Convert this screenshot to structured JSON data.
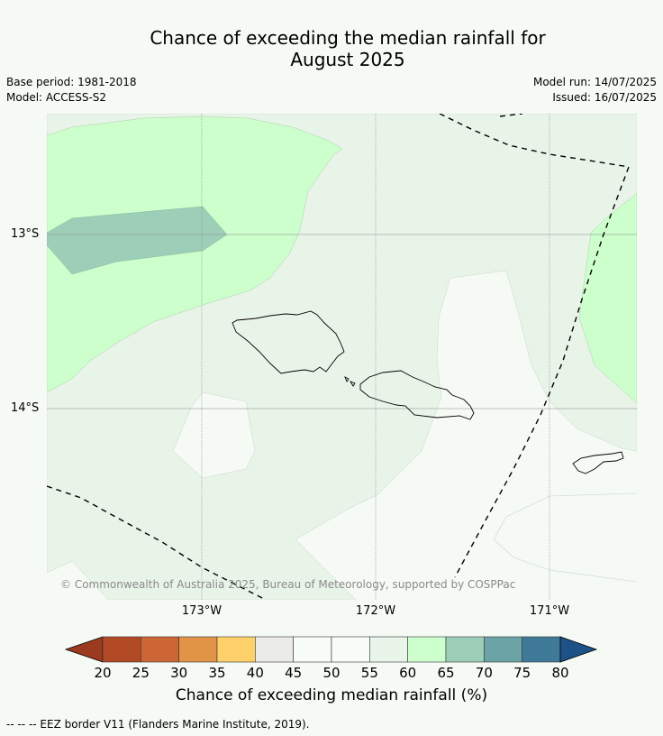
{
  "title_line1": "Chance of exceeding the median rainfall for",
  "title_line2": "August 2025",
  "meta_left": [
    "Base period: 1981-2018",
    "Model: ACCESS-S2"
  ],
  "meta_right": [
    "Model run: 14/07/2025",
    "Issued: 16/07/2025"
  ],
  "map": {
    "lat_labels": [
      "13°S",
      "14°S"
    ],
    "lon_labels": [
      "173°W",
      "172°W",
      "171°W"
    ],
    "copyright": "© Commonwealth of Australia 2025, Bureau of Meteorology, supported by COSPPac",
    "colors": {
      "background_45_55": "#f5faf5",
      "class_55_60": "#e9f4e9",
      "class_60_65": "#ccffcc",
      "class_65_70": "#9dcfb8",
      "eez_line": "#000000"
    }
  },
  "colorbar": {
    "label": "Chance of exceeding median rainfall (%)",
    "ticks": [
      "20",
      "25",
      "30",
      "35",
      "40",
      "45",
      "50",
      "55",
      "60",
      "65",
      "70",
      "75",
      "80"
    ],
    "colors": [
      "#b24a25",
      "#cd6635",
      "#e19346",
      "#fdd06a",
      "#ebebe8",
      "#f8fcf8",
      "#f8fcf8",
      "#e9f5e9",
      "#ccffcc",
      "#9dcfb8",
      "#6ba3a6",
      "#3f7a98"
    ],
    "under_color": "#9c3a1f",
    "over_color": "#1d5287"
  },
  "footnote": "--  --  -- EEZ border V11 (Flanders Marine Institute, 2019)."
}
